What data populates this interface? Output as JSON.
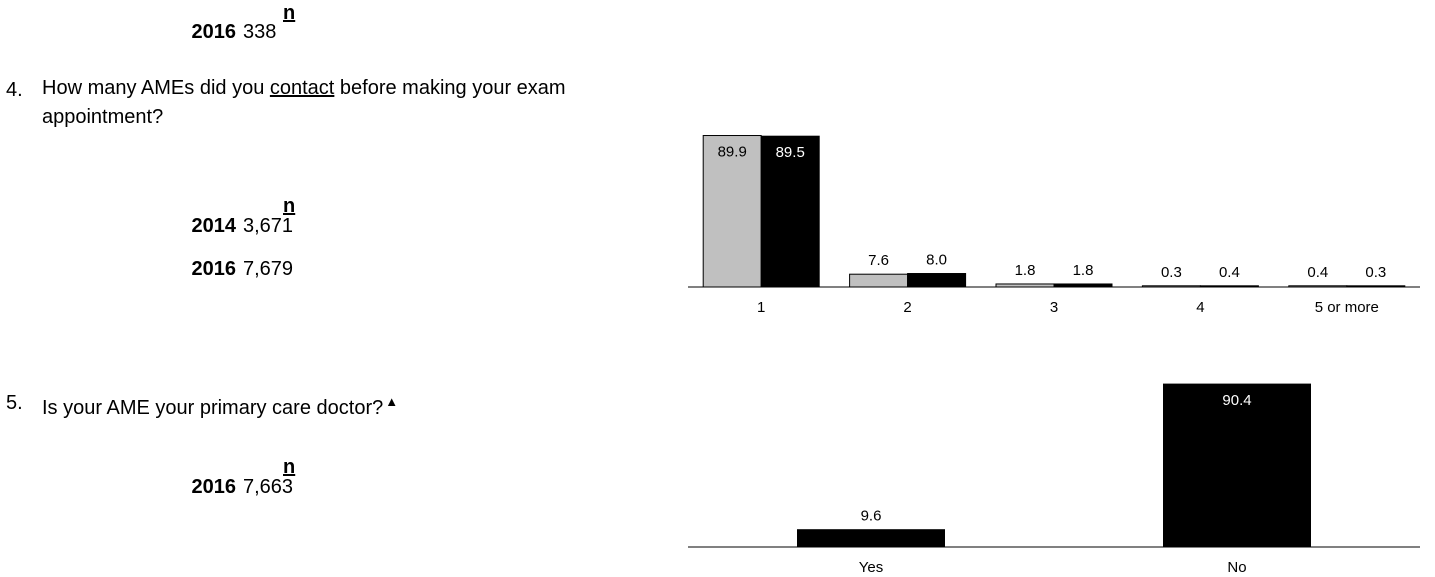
{
  "top_block": {
    "n_header": "n",
    "rows": [
      {
        "year": "2016",
        "n": "338"
      }
    ]
  },
  "q4": {
    "number": "4.",
    "text_before": "How many AMEs did you ",
    "text_underlined": "contact",
    "text_after": " before making your exam appointment?",
    "n_header": "n",
    "rows": [
      {
        "year": "2014",
        "n": "3,671"
      },
      {
        "year": "2016",
        "n": "7,679"
      }
    ]
  },
  "q5": {
    "number": "5.",
    "text": "Is your AME your primary care doctor?",
    "marker": "▲",
    "n_header": "n",
    "rows": [
      {
        "year": "2016",
        "n": "7,663"
      }
    ]
  },
  "chart_data": [
    {
      "type": "bar",
      "categories": [
        "1",
        "2",
        "3",
        "4",
        "5 or more"
      ],
      "series": [
        {
          "values": [
            89.9,
            7.6,
            1.8,
            0.3,
            0.4
          ],
          "color": "#c0c0c0"
        },
        {
          "values": [
            89.5,
            8.0,
            1.8,
            0.4,
            0.3
          ],
          "color": "#000000"
        }
      ],
      "ylim": [
        0,
        100
      ]
    },
    {
      "type": "bar",
      "categories": [
        "Yes",
        "No"
      ],
      "series": [
        {
          "values": [
            9.6,
            90.4
          ],
          "color": "#000000"
        }
      ],
      "ylim": [
        0,
        100
      ]
    }
  ]
}
